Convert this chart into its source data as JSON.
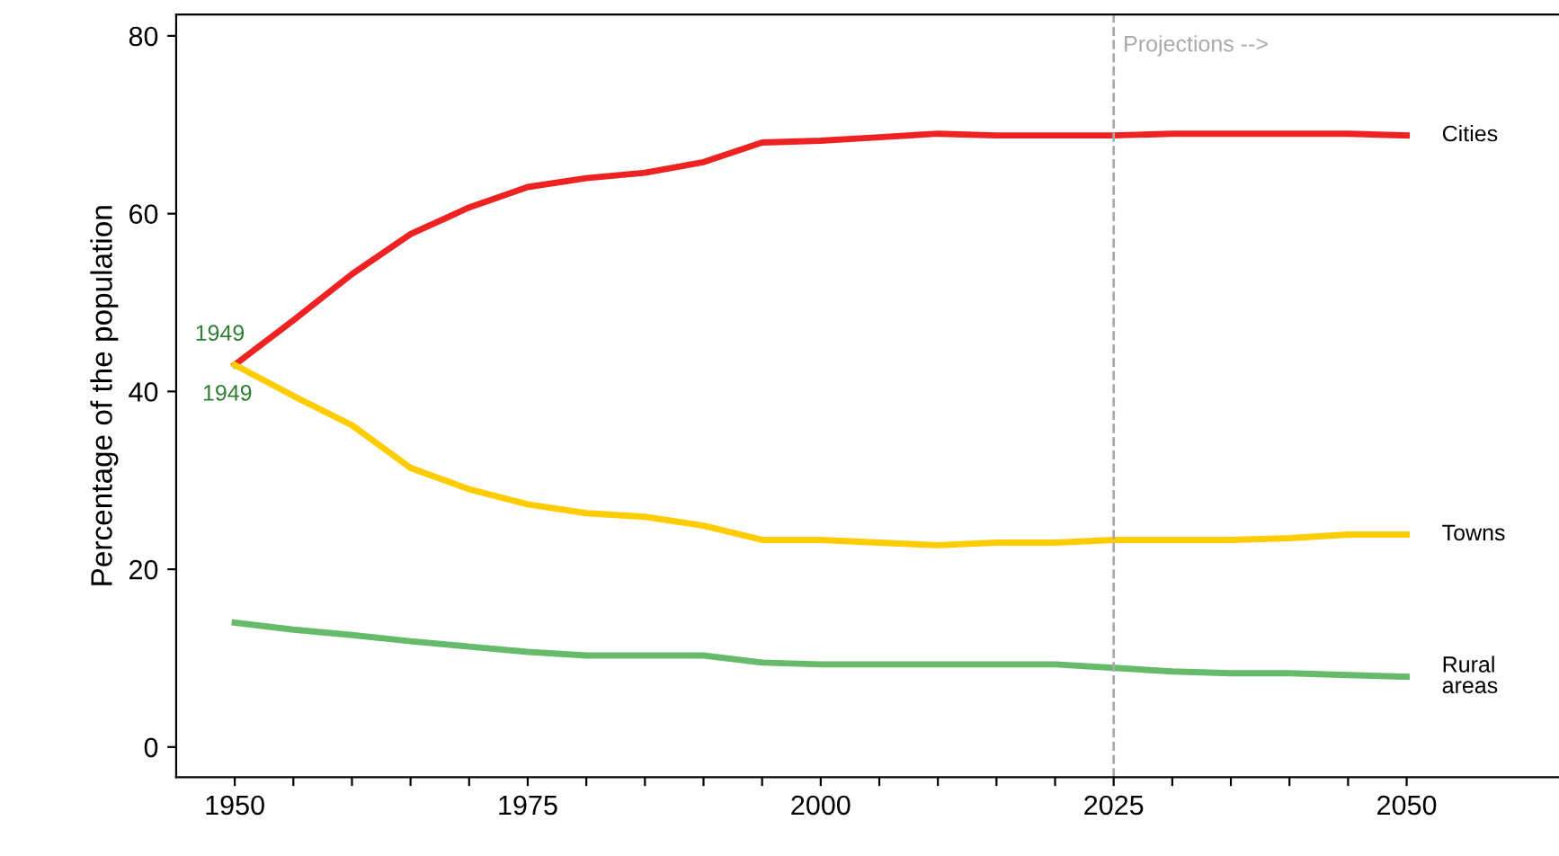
{
  "chart_data": {
    "type": "line",
    "ylabel": "Percentage of the population",
    "x": [
      1950,
      1955,
      1960,
      1965,
      1970,
      1975,
      1980,
      1985,
      1990,
      1995,
      2000,
      2005,
      2010,
      2015,
      2020,
      2025,
      2030,
      2035,
      2040,
      2045,
      2050
    ],
    "series": [
      {
        "name": "Cities",
        "color": "#ee2222",
        "values": [
          43,
          48,
          53.2,
          57.7,
          60.7,
          63,
          64,
          64.6,
          65.8,
          68,
          68.2,
          68.6,
          69,
          68.8,
          68.8,
          68.8,
          69,
          69,
          69,
          69,
          68.8
        ]
      },
      {
        "name": "Towns",
        "color": "#ffcc00",
        "values": [
          43,
          39.5,
          36.2,
          31.4,
          29,
          27.3,
          26.3,
          25.9,
          24.9,
          23.3,
          23.3,
          23,
          22.7,
          23,
          23,
          23.3,
          23.3,
          23.3,
          23.5,
          23.9,
          23.9
        ]
      },
      {
        "name": "Rural\nareas",
        "color": "#66bb6a",
        "values": [
          14,
          13.2,
          12.6,
          11.9,
          11.3,
          10.7,
          10.3,
          10.3,
          10.3,
          9.5,
          9.3,
          9.3,
          9.3,
          9.3,
          9.3,
          8.9,
          8.5,
          8.3,
          8.3,
          8.1,
          7.9
        ]
      }
    ],
    "xlim": [
      1945,
      2063
    ],
    "ylim": [
      -3.4,
      82.4
    ],
    "xticks": [
      1950,
      {
        "value": 1955,
        "label": null
      },
      {
        "value": 1960,
        "label": null
      },
      {
        "value": 1965,
        "label": null
      },
      {
        "value": 1970,
        "label": null
      },
      1975,
      {
        "value": 1980,
        "label": null
      },
      {
        "value": 1985,
        "label": null
      },
      {
        "value": 1990,
        "label": null
      },
      {
        "value": 1995,
        "label": null
      },
      2000,
      {
        "value": 2005,
        "label": null
      },
      {
        "value": 2010,
        "label": null
      },
      {
        "value": 2015,
        "label": null
      },
      {
        "value": 2020,
        "label": null
      },
      2025,
      {
        "value": 2030,
        "label": null
      },
      {
        "value": 2035,
        "label": null
      },
      {
        "value": 2040,
        "label": null
      },
      {
        "value": 2045,
        "label": null
      },
      2050
    ],
    "yticks": [
      0,
      20,
      40,
      60,
      80
    ],
    "ref_lines": [
      {
        "axis": "x",
        "value": 2025,
        "label": "Projections -->",
        "color": "#aaaaaa",
        "line_style": "dashed"
      }
    ],
    "annotations": [
      {
        "text": "1949",
        "x": 1950,
        "y": 43
      },
      {
        "text": "1949",
        "x": 1950,
        "y": 43
      }
    ],
    "grid": false,
    "legend": false,
    "marker": "none",
    "line_style": "solid"
  }
}
